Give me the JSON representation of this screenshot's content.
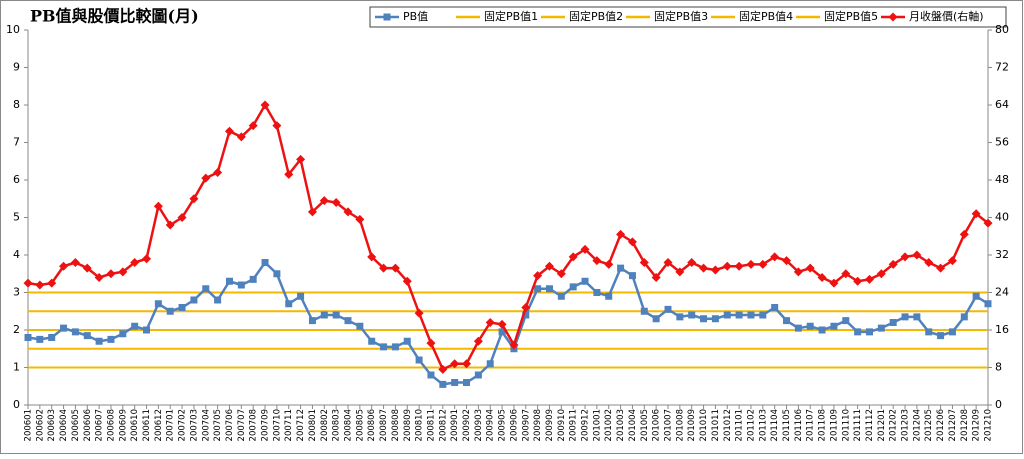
{
  "chart_data": {
    "type": "line",
    "title": "PB值與股價比較圖(月)",
    "categories": [
      "200601",
      "200602",
      "200603",
      "200604",
      "200605",
      "200606",
      "200607",
      "200608",
      "200609",
      "200610",
      "200611",
      "200612",
      "200701",
      "200702",
      "200703",
      "200704",
      "200705",
      "200706",
      "200707",
      "200708",
      "200709",
      "200710",
      "200711",
      "200712",
      "200801",
      "200802",
      "200803",
      "200804",
      "200805",
      "200806",
      "200807",
      "200808",
      "200809",
      "200810",
      "200811",
      "200812",
      "200901",
      "200902",
      "200903",
      "200904",
      "200905",
      "200906",
      "200907",
      "200908",
      "200909",
      "200910",
      "200911",
      "200912",
      "201001",
      "201002",
      "201003",
      "201004",
      "201005",
      "201006",
      "201007",
      "201008",
      "201009",
      "201010",
      "201011",
      "201012",
      "201101",
      "201102",
      "201103",
      "201104",
      "201105",
      "201106",
      "201107",
      "201108",
      "201109",
      "201110",
      "201111",
      "201112",
      "201201",
      "201202",
      "201203",
      "201204",
      "201205",
      "201206",
      "201207",
      "201208",
      "201209",
      "201210"
    ],
    "ylim": [
      0,
      10
    ],
    "yticks": [
      0,
      1,
      2,
      3,
      4,
      5,
      6,
      7,
      8,
      9,
      10
    ],
    "y2lim": [
      0,
      80
    ],
    "y2ticks": [
      0,
      8,
      16,
      24,
      32,
      40,
      48,
      56,
      64,
      72,
      80
    ],
    "grid": false,
    "legend": "top",
    "series": [
      {
        "name": "PB值",
        "color": "#4f81bd",
        "marker": "square",
        "values": [
          1.8,
          1.75,
          1.8,
          2.05,
          1.95,
          1.85,
          1.7,
          1.75,
          1.9,
          2.1,
          2.0,
          2.7,
          2.5,
          2.6,
          2.8,
          3.1,
          2.8,
          3.3,
          3.2,
          3.35,
          3.8,
          3.5,
          2.7,
          2.9,
          2.25,
          2.4,
          2.4,
          2.25,
          2.1,
          1.7,
          1.55,
          1.55,
          1.7,
          1.2,
          0.8,
          0.55,
          0.6,
          0.6,
          0.8,
          1.1,
          1.95,
          1.5,
          2.4,
          3.1,
          3.1,
          2.9,
          3.15,
          3.3,
          3.0,
          2.9,
          3.65,
          3.45,
          2.5,
          2.3,
          2.55,
          2.35,
          2.4,
          2.3,
          2.3,
          2.4,
          2.4,
          2.4,
          2.4,
          2.6,
          2.25,
          2.05,
          2.1,
          2.0,
          2.1,
          2.25,
          1.95,
          1.95,
          2.05,
          2.2,
          2.35,
          2.35,
          1.95,
          1.85,
          1.95,
          2.35,
          2.9,
          2.7
        ]
      },
      {
        "name": "固定PB值1",
        "color": "#f5b800",
        "values": [
          1,
          1,
          1,
          1,
          1,
          1,
          1,
          1,
          1,
          1,
          1,
          1,
          1,
          1,
          1,
          1,
          1,
          1,
          1,
          1,
          1,
          1,
          1,
          1,
          1,
          1,
          1,
          1,
          1,
          1,
          1,
          1,
          1,
          1,
          1,
          1,
          1,
          1,
          1,
          1,
          1,
          1,
          1,
          1,
          1,
          1,
          1,
          1,
          1,
          1,
          1,
          1,
          1,
          1,
          1,
          1,
          1,
          1,
          1,
          1,
          1,
          1,
          1,
          1,
          1,
          1,
          1,
          1,
          1,
          1,
          1,
          1,
          1,
          1,
          1,
          1,
          1,
          1,
          1,
          1,
          1,
          1
        ]
      },
      {
        "name": "固定PB值2",
        "color": "#f5b800",
        "values": [
          1.5,
          1.5,
          1.5,
          1.5,
          1.5,
          1.5,
          1.5,
          1.5,
          1.5,
          1.5,
          1.5,
          1.5,
          1.5,
          1.5,
          1.5,
          1.5,
          1.5,
          1.5,
          1.5,
          1.5,
          1.5,
          1.5,
          1.5,
          1.5,
          1.5,
          1.5,
          1.5,
          1.5,
          1.5,
          1.5,
          1.5,
          1.5,
          1.5,
          1.5,
          1.5,
          1.5,
          1.5,
          1.5,
          1.5,
          1.5,
          1.5,
          1.5,
          1.5,
          1.5,
          1.5,
          1.5,
          1.5,
          1.5,
          1.5,
          1.5,
          1.5,
          1.5,
          1.5,
          1.5,
          1.5,
          1.5,
          1.5,
          1.5,
          1.5,
          1.5,
          1.5,
          1.5,
          1.5,
          1.5,
          1.5,
          1.5,
          1.5,
          1.5,
          1.5,
          1.5,
          1.5,
          1.5,
          1.5,
          1.5,
          1.5,
          1.5,
          1.5,
          1.5,
          1.5,
          1.5,
          1.5,
          1.5
        ]
      },
      {
        "name": "固定PB值3",
        "color": "#f5b800",
        "values": [
          2,
          2,
          2,
          2,
          2,
          2,
          2,
          2,
          2,
          2,
          2,
          2,
          2,
          2,
          2,
          2,
          2,
          2,
          2,
          2,
          2,
          2,
          2,
          2,
          2,
          2,
          2,
          2,
          2,
          2,
          2,
          2,
          2,
          2,
          2,
          2,
          2,
          2,
          2,
          2,
          2,
          2,
          2,
          2,
          2,
          2,
          2,
          2,
          2,
          2,
          2,
          2,
          2,
          2,
          2,
          2,
          2,
          2,
          2,
          2,
          2,
          2,
          2,
          2,
          2,
          2,
          2,
          2,
          2,
          2,
          2,
          2,
          2,
          2,
          2,
          2,
          2,
          2,
          2,
          2,
          2,
          2
        ]
      },
      {
        "name": "固定PB值4",
        "color": "#f5b800",
        "values": [
          2.5,
          2.5,
          2.5,
          2.5,
          2.5,
          2.5,
          2.5,
          2.5,
          2.5,
          2.5,
          2.5,
          2.5,
          2.5,
          2.5,
          2.5,
          2.5,
          2.5,
          2.5,
          2.5,
          2.5,
          2.5,
          2.5,
          2.5,
          2.5,
          2.5,
          2.5,
          2.5,
          2.5,
          2.5,
          2.5,
          2.5,
          2.5,
          2.5,
          2.5,
          2.5,
          2.5,
          2.5,
          2.5,
          2.5,
          2.5,
          2.5,
          2.5,
          2.5,
          2.5,
          2.5,
          2.5,
          2.5,
          2.5,
          2.5,
          2.5,
          2.5,
          2.5,
          2.5,
          2.5,
          2.5,
          2.5,
          2.5,
          2.5,
          2.5,
          2.5,
          2.5,
          2.5,
          2.5,
          2.5,
          2.5,
          2.5,
          2.5,
          2.5,
          2.5,
          2.5,
          2.5,
          2.5,
          2.5,
          2.5,
          2.5,
          2.5,
          2.5,
          2.5,
          2.5,
          2.5,
          2.5,
          2.5
        ]
      },
      {
        "name": "固定PB值5",
        "color": "#f5b800",
        "values": [
          3,
          3,
          3,
          3,
          3,
          3,
          3,
          3,
          3,
          3,
          3,
          3,
          3,
          3,
          3,
          3,
          3,
          3,
          3,
          3,
          3,
          3,
          3,
          3,
          3,
          3,
          3,
          3,
          3,
          3,
          3,
          3,
          3,
          3,
          3,
          3,
          3,
          3,
          3,
          3,
          3,
          3,
          3,
          3,
          3,
          3,
          3,
          3,
          3,
          3,
          3,
          3,
          3,
          3,
          3,
          3,
          3,
          3,
          3,
          3,
          3,
          3,
          3,
          3,
          3,
          3,
          3,
          3,
          3,
          3,
          3,
          3,
          3,
          3,
          3,
          3,
          3,
          3,
          3,
          3,
          3,
          3
        ]
      },
      {
        "name": "月收盤價(右軸)",
        "color": "#ee1111",
        "marker": "diamond",
        "axis": "y2",
        "values": [
          26,
          25.6,
          26,
          29.6,
          30.4,
          29.2,
          27.2,
          28,
          28.4,
          30.4,
          31.2,
          42.4,
          38.4,
          40,
          44,
          48.4,
          49.6,
          58.4,
          57.2,
          59.6,
          64,
          59.6,
          49.2,
          52.4,
          41.2,
          43.6,
          43.2,
          41.2,
          39.6,
          31.6,
          29.2,
          29.2,
          26.4,
          19.6,
          13.2,
          7.6,
          8.8,
          8.8,
          13.6,
          17.6,
          17.2,
          12.8,
          20.8,
          27.6,
          29.6,
          28,
          31.6,
          33.2,
          30.8,
          30,
          36.4,
          34.8,
          30.4,
          27.2,
          30.4,
          28.4,
          30.4,
          29.2,
          28.8,
          29.6,
          29.6,
          30,
          30,
          31.6,
          30.8,
          28.4,
          29.2,
          27.2,
          26,
          28,
          26.4,
          26.8,
          28,
          30,
          31.6,
          32,
          30.4,
          29.2,
          30.8,
          36.4,
          40.8,
          38.8
        ]
      }
    ]
  }
}
